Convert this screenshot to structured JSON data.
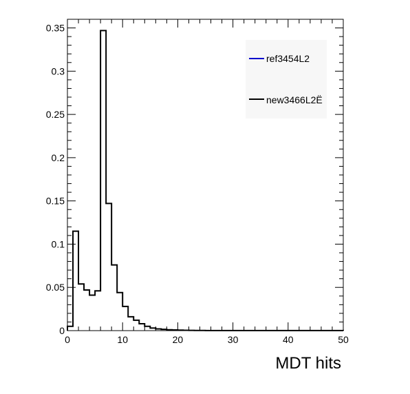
{
  "chart_data": {
    "type": "histogram",
    "xlabel": "MDT hits",
    "ylabel": "",
    "xlim": [
      0,
      50
    ],
    "ylim": [
      0,
      0.36
    ],
    "x_ticks": [
      0,
      10,
      20,
      30,
      40,
      50
    ],
    "y_ticks": [
      0,
      0.05,
      0.1,
      0.15,
      0.2,
      0.25,
      0.3,
      0.35
    ],
    "y_tick_labels": [
      "0",
      "0.05",
      "0.1",
      "0.15",
      "0.2",
      "0.25",
      "0.3",
      "0.35"
    ],
    "x_tick_labels": [
      "0",
      "10",
      "20",
      "30",
      "40",
      "50"
    ],
    "grid": false,
    "legend_position": "top-right",
    "bin_edges_start": 0,
    "bin_width": 1,
    "series": [
      {
        "name": "ref3454L2",
        "color": "#0000cc",
        "values": []
      },
      {
        "name": "new3466L2Ë",
        "color": "#000000",
        "values": [
          0.005,
          0.115,
          0.054,
          0.047,
          0.041,
          0.046,
          0.347,
          0.147,
          0.076,
          0.044,
          0.028,
          0.016,
          0.012,
          0.008,
          0.005,
          0.003,
          0.002,
          0.0015,
          0.001,
          0.0008,
          0.0006,
          0.0004,
          0.0003,
          0.0002,
          0.0002,
          0.0001,
          0.0001,
          0.0001,
          0.0001,
          0.0001,
          0.0001,
          0.0001,
          0.0001,
          0.0001,
          0.0001,
          0.0001,
          0.0001,
          0.0001,
          0.0001,
          0.0001,
          0.0001,
          0.0001,
          0.0001,
          0.0001,
          0.0001,
          0.0001,
          0.0001,
          0.0001,
          0.0001,
          0.0001
        ]
      }
    ]
  }
}
